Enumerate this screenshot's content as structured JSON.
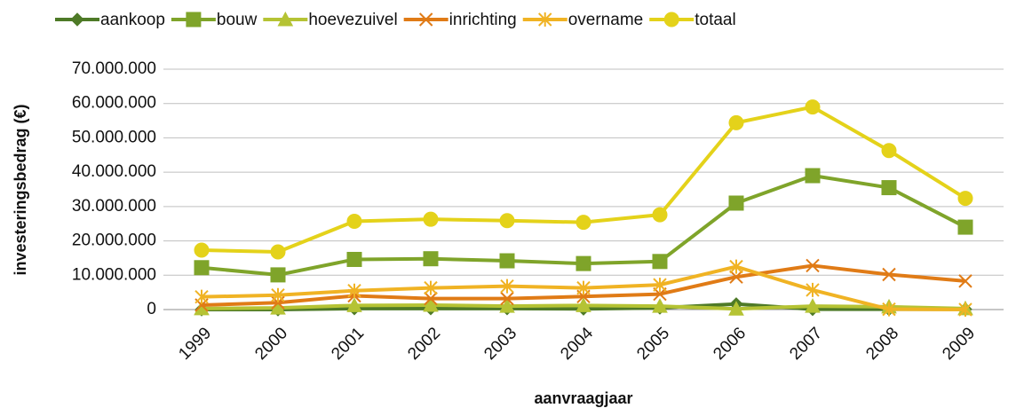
{
  "chart_data": {
    "type": "line",
    "categories": [
      "1999",
      "2000",
      "2001",
      "2002",
      "2003",
      "2004",
      "2005",
      "2006",
      "2007",
      "2008",
      "2009"
    ],
    "series": [
      {
        "name": "aankoop",
        "color": "#4e7a27",
        "marker": "diamond",
        "values": [
          0,
          0,
          300000,
          300000,
          300000,
          200000,
          500000,
          1600000,
          100000,
          100000,
          100000
        ]
      },
      {
        "name": "bouw",
        "color": "#7fa42a",
        "marker": "square",
        "values": [
          12200000,
          10100000,
          14600000,
          14800000,
          14200000,
          13400000,
          14000000,
          31000000,
          39000000,
          35500000,
          24000000
        ]
      },
      {
        "name": "hoevezuivel",
        "color": "#b5c334",
        "marker": "triangle",
        "values": [
          300000,
          500000,
          1200000,
          1300000,
          1000000,
          1200000,
          1000000,
          200000,
          1000000,
          800000,
          300000
        ]
      },
      {
        "name": "inrichting",
        "color": "#e07b16",
        "marker": "x",
        "values": [
          1300000,
          2000000,
          4000000,
          3200000,
          3200000,
          3800000,
          4500000,
          9500000,
          12800000,
          10200000,
          8300000
        ]
      },
      {
        "name": "overname",
        "color": "#f0b324",
        "marker": "star",
        "values": [
          3700000,
          4200000,
          5500000,
          6300000,
          6800000,
          6300000,
          7200000,
          12500000,
          5700000,
          100000,
          0
        ]
      },
      {
        "name": "totaal",
        "color": "#e4d21a",
        "marker": "circle",
        "values": [
          17300000,
          16800000,
          25700000,
          26300000,
          25900000,
          25400000,
          27600000,
          54400000,
          59000000,
          46300000,
          32400000
        ]
      }
    ],
    "ylim": [
      0,
      70000000
    ],
    "yticks": [
      0,
      {
        "value": 10000000,
        "label": "10.000.000"
      },
      {
        "value": 20000000,
        "label": "20.000.000"
      },
      {
        "value": 30000000,
        "label": "30.000.000"
      },
      {
        "value": 40000000,
        "label": "40.000.000"
      },
      {
        "value": 50000000,
        "label": "50.000.000"
      },
      {
        "value": 60000000,
        "label": "60.000.000"
      },
      {
        "value": 70000000,
        "label": "70.000.000"
      }
    ],
    "ylabel": "investeringsbedrag (€)",
    "xlabel": "aanvraagjaar",
    "grid": true,
    "legend": "top"
  }
}
